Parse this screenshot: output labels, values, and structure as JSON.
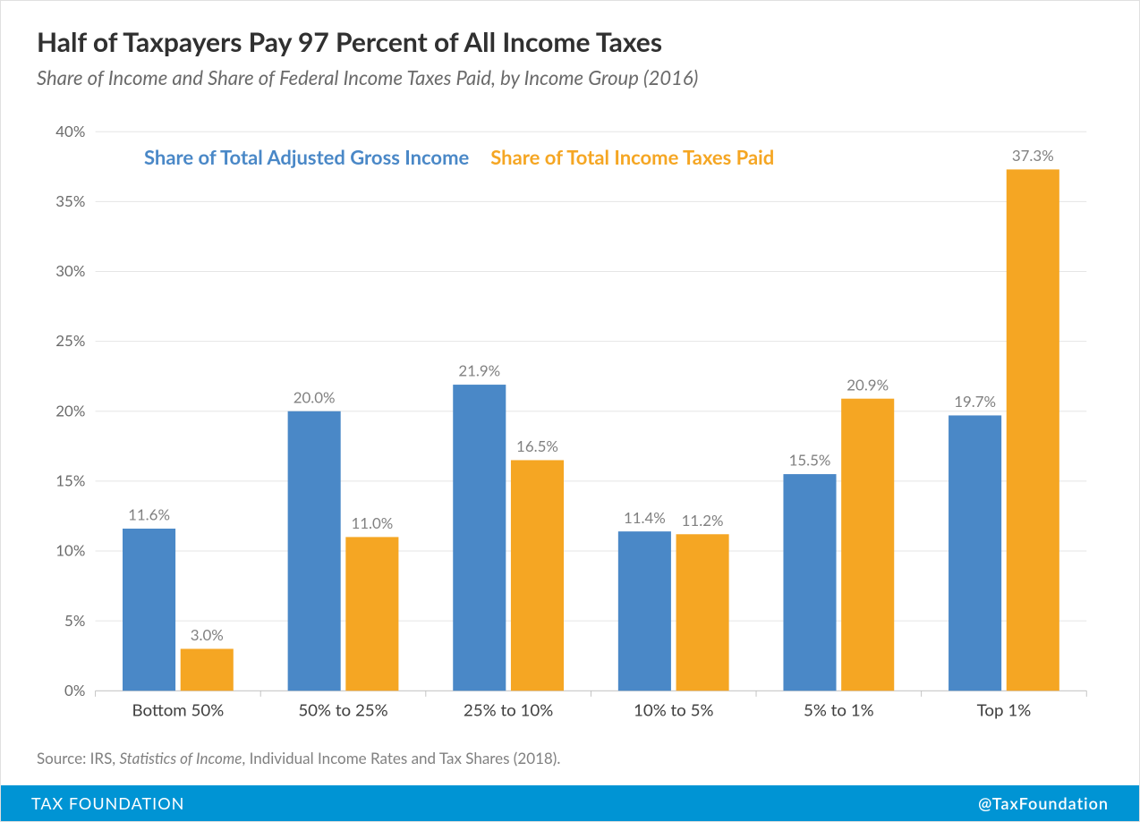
{
  "header": {
    "title": "Half of Taxpayers Pay 97 Percent of All Income Taxes",
    "subtitle": "Share of Income and Share of Federal Income Taxes Paid, by Income Group (2016)"
  },
  "chart": {
    "type": "bar",
    "categories": [
      "Bottom 50%",
      "50% to 25%",
      "25% to 10%",
      "10% to 5%",
      "5% to 1%",
      "Top 1%"
    ],
    "series": [
      {
        "name": "Share of Total Adjusted Gross Income",
        "color": "#4a88c7",
        "values": [
          11.6,
          20.0,
          21.9,
          11.4,
          15.5,
          19.7
        ],
        "labels": [
          "11.6%",
          "20.0%",
          "21.9%",
          "11.4%",
          "15.5%",
          "19.7%"
        ]
      },
      {
        "name": "Share of Total Income Taxes Paid",
        "color": "#f5a623",
        "values": [
          3.0,
          11.0,
          16.5,
          11.2,
          20.9,
          37.3
        ],
        "labels": [
          "3.0%",
          "11.0%",
          "16.5%",
          "11.2%",
          "20.9%",
          "37.3%"
        ]
      }
    ],
    "y_axis": {
      "min": 0,
      "max": 40,
      "tick_step": 5,
      "ticks": [
        "0%",
        "5%",
        "10%",
        "15%",
        "20%",
        "25%",
        "30%",
        "35%",
        "40%"
      ]
    },
    "background_color": "#ffffff",
    "gridline_color": "#e5e5e5",
    "axis_line_color": "#c0c0c0",
    "tick_label_color": "#6a6a6a",
    "x_label_color": "#404040",
    "value_label_color": "#808080",
    "bar_width": 0.32,
    "title_fontsize": 30,
    "subtitle_fontsize": 22,
    "legend_fontsize": 22,
    "axis_label_fontsize": 18,
    "x_label_fontsize": 20,
    "value_label_fontsize": 18
  },
  "source": {
    "prefix": "Source: IRS, ",
    "italic": "Statistics of Income",
    "suffix": ", Individual Income Rates and Tax Shares (2018)."
  },
  "footer": {
    "left": "TAX FOUNDATION",
    "right": "@TaxFoundation",
    "background_color": "#0094d4",
    "text_color": "#ffffff"
  }
}
